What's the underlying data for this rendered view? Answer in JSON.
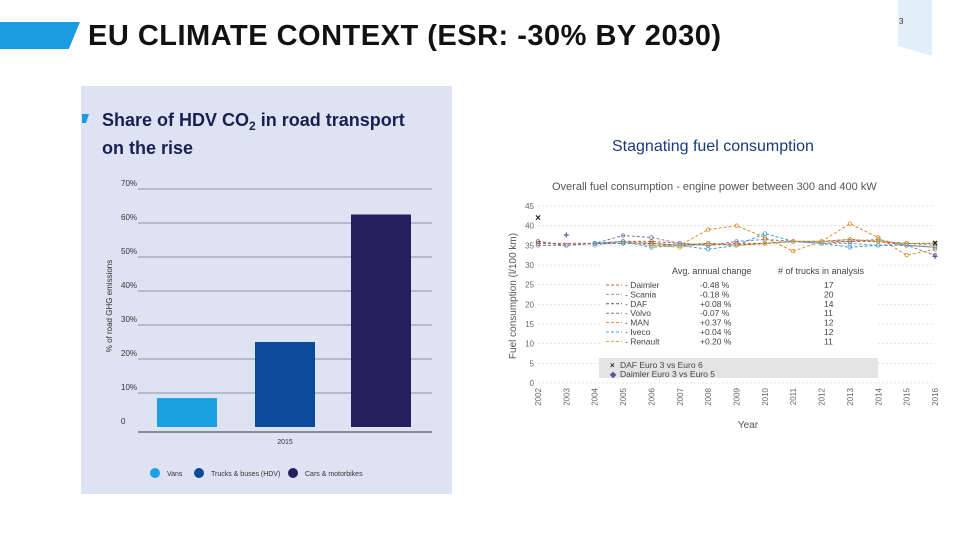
{
  "slide": {
    "title": "EU CLIMATE CONTEXT (ESR: -30% BY 2030)",
    "page_number": "3"
  },
  "chart_data": [
    {
      "type": "bar",
      "title_line1": "Share of HDV CO",
      "title_sub": "2",
      "title_line1_rest": " in road transport",
      "title_line2": "on the rise",
      "ylabel": "% of road GHG emissions",
      "yticks": [
        "0",
        "10%",
        "20%",
        "30%",
        "40%",
        "50%",
        "60%",
        "70%"
      ],
      "ylim": [
        0,
        70
      ],
      "categories": [
        "2015"
      ],
      "series": [
        {
          "name": "Vans",
          "value": 8.5,
          "color": "#1ba0e2"
        },
        {
          "name": "Trucks & buses (HDV)",
          "value": 25,
          "color": "#0a4a9a"
        },
        {
          "name": "Cars & motorbikes",
          "value": 62.5,
          "color": "#23205e"
        }
      ]
    },
    {
      "type": "line",
      "title": "Stagnating fuel consumption",
      "subtitle": "Overall fuel consumption - engine power between 300 and 400 kW",
      "xlabel": "Year",
      "ylabel": "Fuel consumption (l/100 km)",
      "ylim": [
        0,
        45
      ],
      "yticks": [
        0,
        5,
        10,
        15,
        20,
        25,
        30,
        35,
        40,
        45
      ],
      "x": [
        "2002",
        "2003",
        "2004",
        "2005",
        "2006",
        "2007",
        "2008",
        "2009",
        "2010",
        "2011",
        "2012",
        "2013",
        "2014",
        "2015",
        "2016"
      ],
      "table_headers": {
        "change": "Avg. annual change",
        "trucks": "# of trucks in analysis"
      },
      "series": [
        {
          "name": "Daimler",
          "change": "-0.48 %",
          "trucks": "17",
          "color": "#e05a2a",
          "values": [
            35.5,
            null,
            35.5,
            36,
            36,
            35.5,
            35,
            35.5,
            35.5,
            36,
            35.5,
            36,
            36,
            35,
            34.5
          ]
        },
        {
          "name": "Scania",
          "change": "-0.18 %",
          "trucks": "20",
          "color": "#8aa0b0",
          "values": [
            null,
            null,
            35,
            36,
            35.5,
            35,
            35.5,
            35,
            35.5,
            36,
            35.5,
            35.5,
            35,
            35.5,
            35
          ]
        },
        {
          "name": "DAF",
          "change": "+0.08 %",
          "trucks": "14",
          "color": "#5a5a5a",
          "values": [
            36,
            35,
            35.5,
            35.5,
            35.5,
            35,
            35.5,
            35,
            35.5,
            36,
            36,
            36.5,
            36,
            35.5,
            35.5
          ]
        },
        {
          "name": "Volvo",
          "change": "-0.07 %",
          "trucks": "11",
          "color": "#7a7aa8",
          "values": [
            35,
            35,
            35.5,
            37.5,
            37,
            35.5,
            35,
            36,
            36.5,
            36,
            36,
            36,
            36.5,
            35,
            32.5
          ]
        },
        {
          "name": "MAN",
          "change": "+0.37 %",
          "trucks": "12",
          "color": "#e08a2a",
          "values": [
            null,
            null,
            null,
            36,
            35,
            35,
            39,
            40,
            37,
            33.5,
            36,
            40.5,
            37,
            32.5,
            34
          ]
        },
        {
          "name": "Iveco",
          "change": "+0.04 %",
          "trucks": "12",
          "color": "#3aa0d8",
          "values": [
            null,
            null,
            35.5,
            36,
            34.5,
            35,
            34,
            35,
            38,
            36,
            35.5,
            34.5,
            35,
            35,
            34.5
          ]
        },
        {
          "name": "Renault",
          "change": "+0.20 %",
          "trucks": "11",
          "color": "#e0a030",
          "values": [
            null,
            null,
            null,
            null,
            35,
            34.5,
            35.5,
            35,
            35.5,
            36,
            36,
            36.5,
            36,
            35.5,
            35.5
          ]
        }
      ],
      "markers": [
        {
          "name": "DAF Euro 3 vs Euro 6",
          "color": "#222222",
          "points": [
            [
              0,
              42
            ],
            [
              14,
              35.5
            ]
          ]
        },
        {
          "name": "Daimler Euro 3 vs Euro 5",
          "color": "#6a4a9a",
          "points": [
            [
              1,
              37.5
            ],
            [
              14,
              32
            ]
          ]
        }
      ]
    }
  ]
}
